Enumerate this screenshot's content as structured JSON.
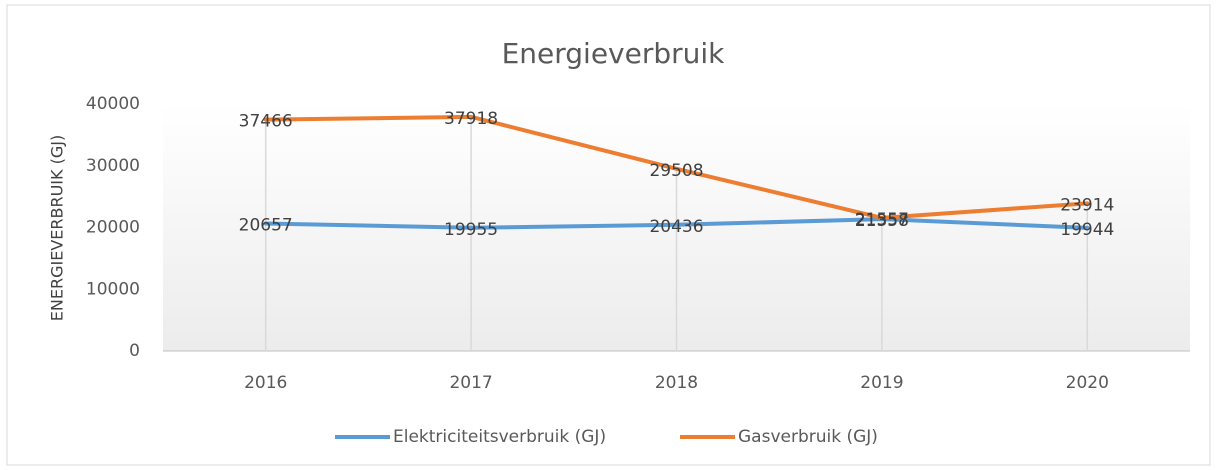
{
  "chart_data": {
    "type": "line",
    "title": "Energieverbruik",
    "y_label": "ENERGIEVERBRUIK (GJ)",
    "categories": [
      "2016",
      "2017",
      "2018",
      "2019",
      "2020"
    ],
    "series": [
      {
        "name": "Elektriciteitsverbruik (GJ)",
        "color": "#5b9bd5",
        "values": [
          20657,
          19955,
          20436,
          21358,
          19944
        ]
      },
      {
        "name": "Gasverbruik (GJ)",
        "color": "#ed7d31",
        "values": [
          37466,
          37918,
          29508,
          21557,
          23914
        ]
      }
    ],
    "ylim": [
      0,
      40000
    ],
    "yticks": [
      0,
      10000,
      20000,
      30000,
      40000
    ]
  }
}
